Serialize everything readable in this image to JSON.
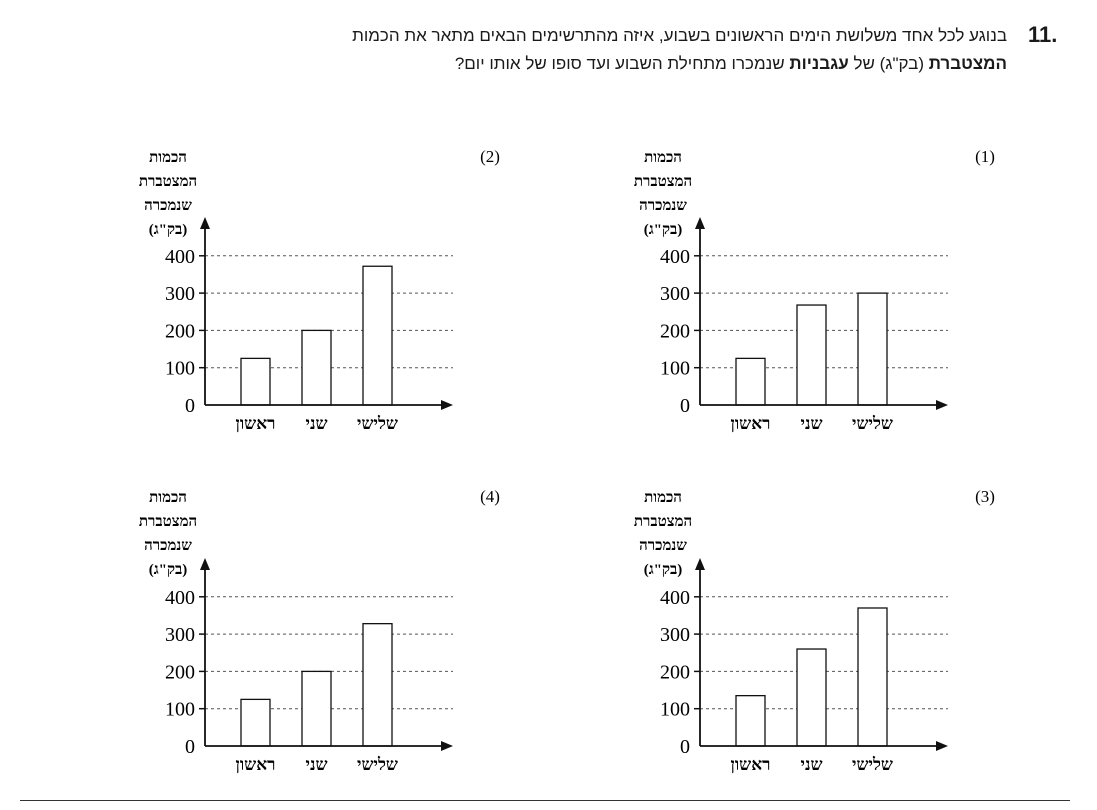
{
  "question": {
    "number": "11.",
    "line1": "בנוגע לכל אחד משלושת הימים הראשונים בשבוע, איזה מהתרשימים הבאים מתאר את הכמות",
    "line2_bold1": "המצטברת",
    "line2_mid1": " (בק\"ג) של ",
    "line2_bold2": "עגבניות",
    "line2_end": " שנמכרו מתחילת השבוע ועד סופו של אותו יום?"
  },
  "ylabel_lines": [
    "הכמות",
    "המצטברת",
    "שנמכרה",
    "(בק\"ג)"
  ],
  "chart_data": [
    {
      "type": "bar",
      "option_label": "(1)",
      "categories": [
        "ראשון",
        "שני",
        "שלישי"
      ],
      "values": [
        125,
        268,
        300
      ],
      "ylim": [
        0,
        420
      ],
      "yticks": [
        0,
        100,
        200,
        300,
        400
      ],
      "grid": true
    },
    {
      "type": "bar",
      "option_label": "(2)",
      "categories": [
        "ראשון",
        "שני",
        "שלישי"
      ],
      "values": [
        125,
        200,
        372
      ],
      "ylim": [
        0,
        420
      ],
      "yticks": [
        0,
        100,
        200,
        300,
        400
      ],
      "grid": true
    },
    {
      "type": "bar",
      "option_label": "(3)",
      "categories": [
        "ראשון",
        "שני",
        "שלישי"
      ],
      "values": [
        135,
        260,
        370
      ],
      "ylim": [
        0,
        420
      ],
      "yticks": [
        0,
        100,
        200,
        300,
        400
      ],
      "grid": true
    },
    {
      "type": "bar",
      "option_label": "(4)",
      "categories": [
        "ראשון",
        "שני",
        "שלישי"
      ],
      "values": [
        125,
        200,
        328
      ],
      "ylim": [
        0,
        420
      ],
      "yticks": [
        0,
        100,
        200,
        300,
        400
      ],
      "grid": true
    }
  ]
}
